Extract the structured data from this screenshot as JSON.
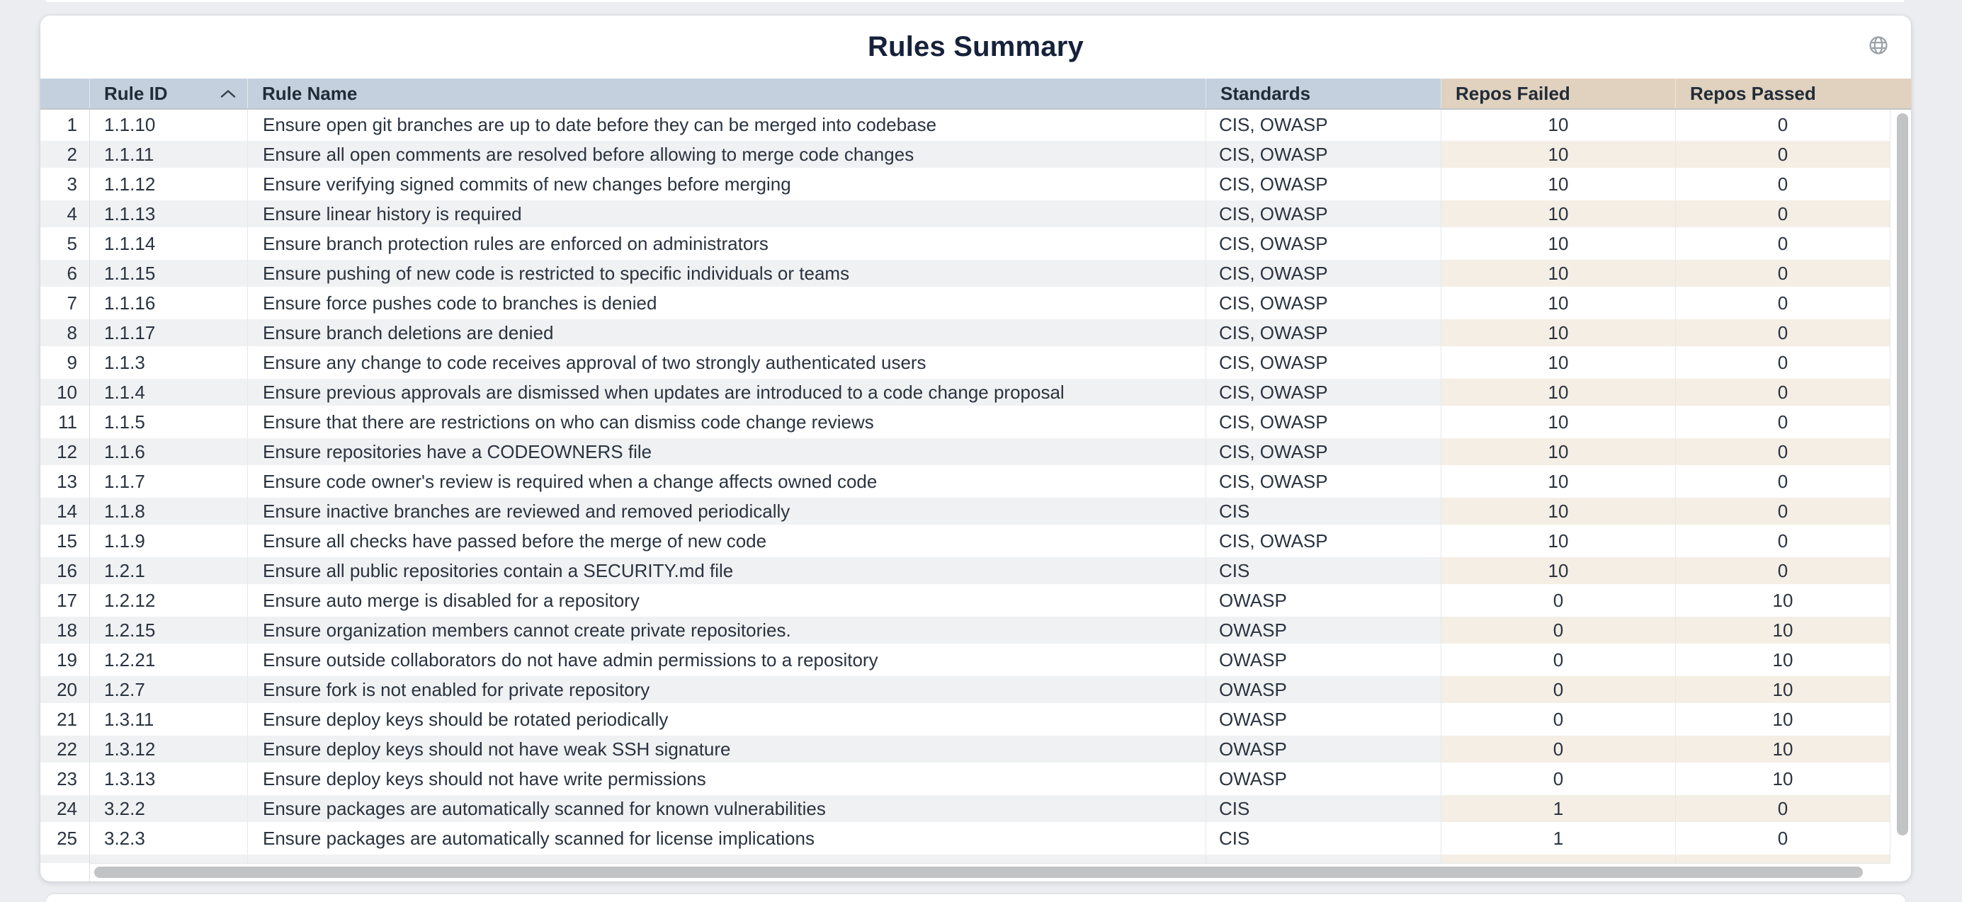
{
  "title": "Rules Summary",
  "table": {
    "sort": {
      "column": "Rule ID",
      "direction": "ascending"
    },
    "columns": [
      {
        "key": "num",
        "label": ""
      },
      {
        "key": "rule_id",
        "label": "Rule ID"
      },
      {
        "key": "rule_name",
        "label": "Rule Name"
      },
      {
        "key": "standards",
        "label": "Standards"
      },
      {
        "key": "repos_failed",
        "label": "Repos Failed"
      },
      {
        "key": "repos_passed",
        "label": "Repos Passed"
      }
    ],
    "rows": [
      {
        "num": 1,
        "rule_id": "1.1.10",
        "rule_name": "Ensure open git branches are up to date before they can be merged into codebase",
        "standards": "CIS, OWASP",
        "repos_failed": 10,
        "repos_passed": 0
      },
      {
        "num": 2,
        "rule_id": "1.1.11",
        "rule_name": "Ensure all open comments are resolved before allowing to merge code changes",
        "standards": "CIS, OWASP",
        "repos_failed": 10,
        "repos_passed": 0
      },
      {
        "num": 3,
        "rule_id": "1.1.12",
        "rule_name": "Ensure verifying signed commits of new changes before merging",
        "standards": "CIS, OWASP",
        "repos_failed": 10,
        "repos_passed": 0
      },
      {
        "num": 4,
        "rule_id": "1.1.13",
        "rule_name": "Ensure linear history is required",
        "standards": "CIS, OWASP",
        "repos_failed": 10,
        "repos_passed": 0
      },
      {
        "num": 5,
        "rule_id": "1.1.14",
        "rule_name": "Ensure branch protection rules are enforced on administrators",
        "standards": "CIS, OWASP",
        "repos_failed": 10,
        "repos_passed": 0
      },
      {
        "num": 6,
        "rule_id": "1.1.15",
        "rule_name": "Ensure pushing of new code is restricted to specific individuals or teams",
        "standards": "CIS, OWASP",
        "repos_failed": 10,
        "repos_passed": 0
      },
      {
        "num": 7,
        "rule_id": "1.1.16",
        "rule_name": "Ensure force pushes code to branches is denied",
        "standards": "CIS, OWASP",
        "repos_failed": 10,
        "repos_passed": 0
      },
      {
        "num": 8,
        "rule_id": "1.1.17",
        "rule_name": "Ensure branch deletions are denied",
        "standards": "CIS, OWASP",
        "repos_failed": 10,
        "repos_passed": 0
      },
      {
        "num": 9,
        "rule_id": "1.1.3",
        "rule_name": "Ensure any change to code receives approval of two strongly authenticated users",
        "standards": "CIS, OWASP",
        "repos_failed": 10,
        "repos_passed": 0
      },
      {
        "num": 10,
        "rule_id": "1.1.4",
        "rule_name": "Ensure previous approvals are dismissed when updates are introduced to a code change proposal",
        "standards": "CIS, OWASP",
        "repos_failed": 10,
        "repos_passed": 0
      },
      {
        "num": 11,
        "rule_id": "1.1.5",
        "rule_name": "Ensure that there are restrictions on who can dismiss code change reviews",
        "standards": "CIS, OWASP",
        "repos_failed": 10,
        "repos_passed": 0
      },
      {
        "num": 12,
        "rule_id": "1.1.6",
        "rule_name": "Ensure repositories have a CODEOWNERS file",
        "standards": "CIS, OWASP",
        "repos_failed": 10,
        "repos_passed": 0
      },
      {
        "num": 13,
        "rule_id": "1.1.7",
        "rule_name": "Ensure code owner's review is required when a change affects owned code",
        "standards": "CIS, OWASP",
        "repos_failed": 10,
        "repos_passed": 0
      },
      {
        "num": 14,
        "rule_id": "1.1.8",
        "rule_name": "Ensure inactive branches are reviewed and removed periodically",
        "standards": "CIS",
        "repos_failed": 10,
        "repos_passed": 0
      },
      {
        "num": 15,
        "rule_id": "1.1.9",
        "rule_name": "Ensure all checks have passed before the merge of new code",
        "standards": "CIS, OWASP",
        "repos_failed": 10,
        "repos_passed": 0
      },
      {
        "num": 16,
        "rule_id": "1.2.1",
        "rule_name": "Ensure all public repositories contain a SECURITY.md file",
        "standards": "CIS",
        "repos_failed": 10,
        "repos_passed": 0
      },
      {
        "num": 17,
        "rule_id": "1.2.12",
        "rule_name": "Ensure auto merge is disabled for a repository",
        "standards": "OWASP",
        "repos_failed": 0,
        "repos_passed": 10
      },
      {
        "num": 18,
        "rule_id": "1.2.15",
        "rule_name": "Ensure organization members cannot create private repositories.",
        "standards": "OWASP",
        "repos_failed": 0,
        "repos_passed": 10
      },
      {
        "num": 19,
        "rule_id": "1.2.21",
        "rule_name": "Ensure outside collaborators do not have admin permissions to a repository",
        "standards": "OWASP",
        "repos_failed": 0,
        "repos_passed": 10
      },
      {
        "num": 20,
        "rule_id": "1.2.7",
        "rule_name": "Ensure fork is not enabled for private repository",
        "standards": "OWASP",
        "repos_failed": 0,
        "repos_passed": 10
      },
      {
        "num": 21,
        "rule_id": "1.3.11",
        "rule_name": "Ensure deploy keys should be rotated periodically",
        "standards": "OWASP",
        "repos_failed": 0,
        "repos_passed": 10
      },
      {
        "num": 22,
        "rule_id": "1.3.12",
        "rule_name": "Ensure deploy keys should not have weak SSH signature",
        "standards": "OWASP",
        "repos_failed": 0,
        "repos_passed": 10
      },
      {
        "num": 23,
        "rule_id": "1.3.13",
        "rule_name": "Ensure deploy keys should not have write permissions",
        "standards": "OWASP",
        "repos_failed": 0,
        "repos_passed": 10
      },
      {
        "num": 24,
        "rule_id": "3.2.2",
        "rule_name": "Ensure packages are automatically scanned for known vulnerabilities",
        "standards": "CIS",
        "repos_failed": 1,
        "repos_passed": 0
      },
      {
        "num": 25,
        "rule_id": "3.2.3",
        "rule_name": "Ensure packages are automatically scanned for license implications",
        "standards": "CIS",
        "repos_failed": 1,
        "repos_passed": 0
      }
    ]
  }
}
